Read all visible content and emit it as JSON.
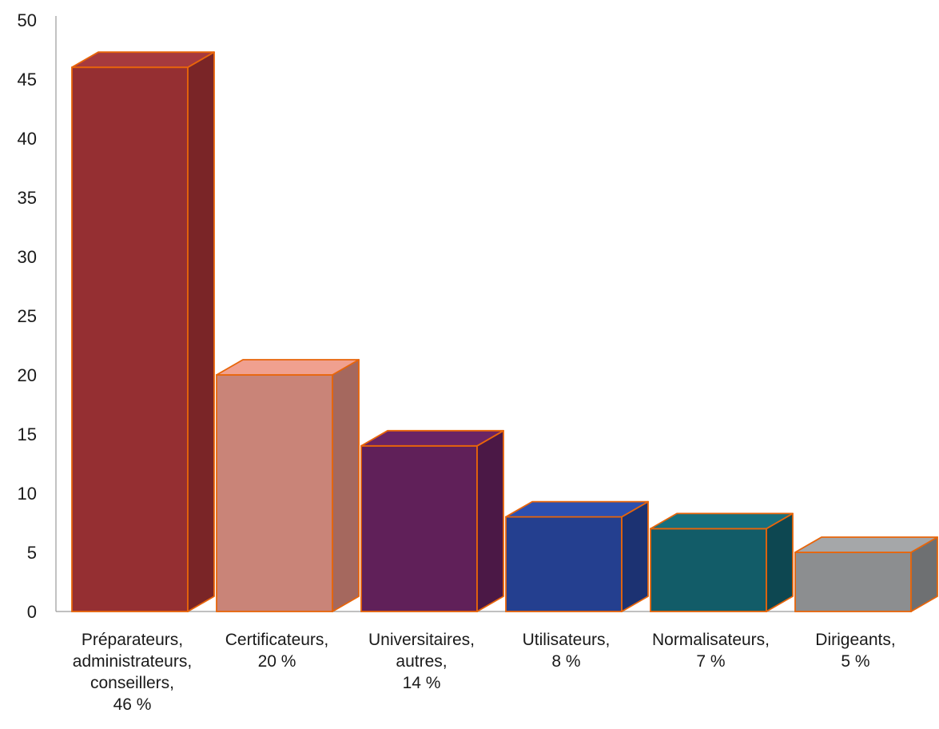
{
  "chart_data": {
    "type": "bar",
    "title": "",
    "xlabel": "",
    "ylabel": "",
    "ylim": [
      0,
      50
    ],
    "yticks": [
      0,
      5,
      10,
      15,
      20,
      25,
      30,
      35,
      40,
      45,
      50
    ],
    "grid": false,
    "legend": "none",
    "style": "3d-column",
    "bar_outline_color": "#e8650a",
    "categories": [
      {
        "lines": [
          "Préparateurs,",
          "administrateurs,",
          "conseillers,",
          "46 %"
        ]
      },
      {
        "lines": [
          "Certificateurs,",
          "20 %"
        ]
      },
      {
        "lines": [
          "Universitaires,",
          "autres,",
          "14 %"
        ]
      },
      {
        "lines": [
          "Utilisateurs,",
          "8 %"
        ]
      },
      {
        "lines": [
          "Normalisateurs,",
          "7 %"
        ]
      },
      {
        "lines": [
          "Dirigeants,",
          "5 %"
        ]
      }
    ],
    "values": [
      46,
      20,
      14,
      8,
      7,
      5
    ],
    "colors": [
      {
        "front": "#952f32",
        "top": "#a63a3e",
        "side": "#7a2527"
      },
      {
        "front": "#c98478",
        "top": "#f0a08f",
        "side": "#a5685e"
      },
      {
        "front": "#602059",
        "top": "#6a2464",
        "side": "#4b1846"
      },
      {
        "front": "#243f8f",
        "top": "#2c4fb0",
        "side": "#1c3272"
      },
      {
        "front": "#125c68",
        "top": "#16707e",
        "side": "#0d4751"
      },
      {
        "front": "#8c8e90",
        "top": "#a5a7a9",
        "side": "#6e7072"
      }
    ]
  }
}
